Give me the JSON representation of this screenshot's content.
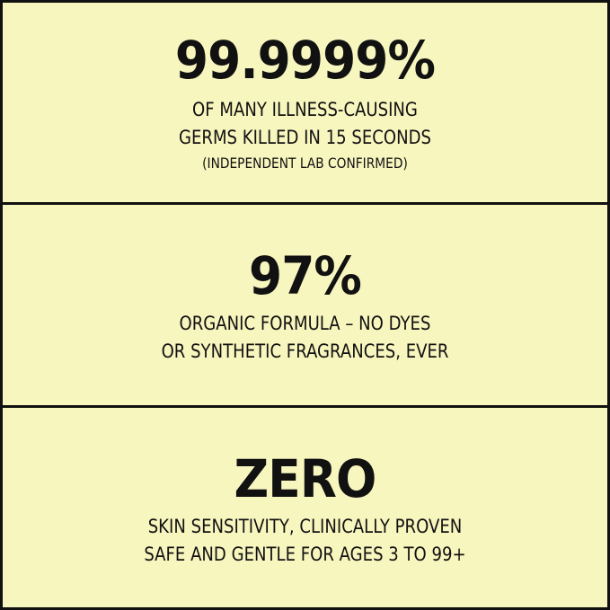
{
  "background_color": "#f8f6bf",
  "panels": [
    {
      "headline": "99.9999%",
      "lines": [
        "OF MANY ILLNESS-CAUSING",
        "GERMS KILLED IN 15 SECONDS"
      ],
      "note": "(INDEPENDENT LAB CONFIRMED)"
    },
    {
      "headline": "97%",
      "lines": [
        "ORGANIC FORMULA – NO DYES",
        "OR SYNTHETIC FRAGRANCES, EVER"
      ]
    },
    {
      "headline": "ZERO",
      "lines": [
        "SKIN SENSITIVITY, CLINICALLY PROVEN",
        "SAFE AND GENTLE FOR  AGES 3 TO 99+"
      ]
    }
  ]
}
